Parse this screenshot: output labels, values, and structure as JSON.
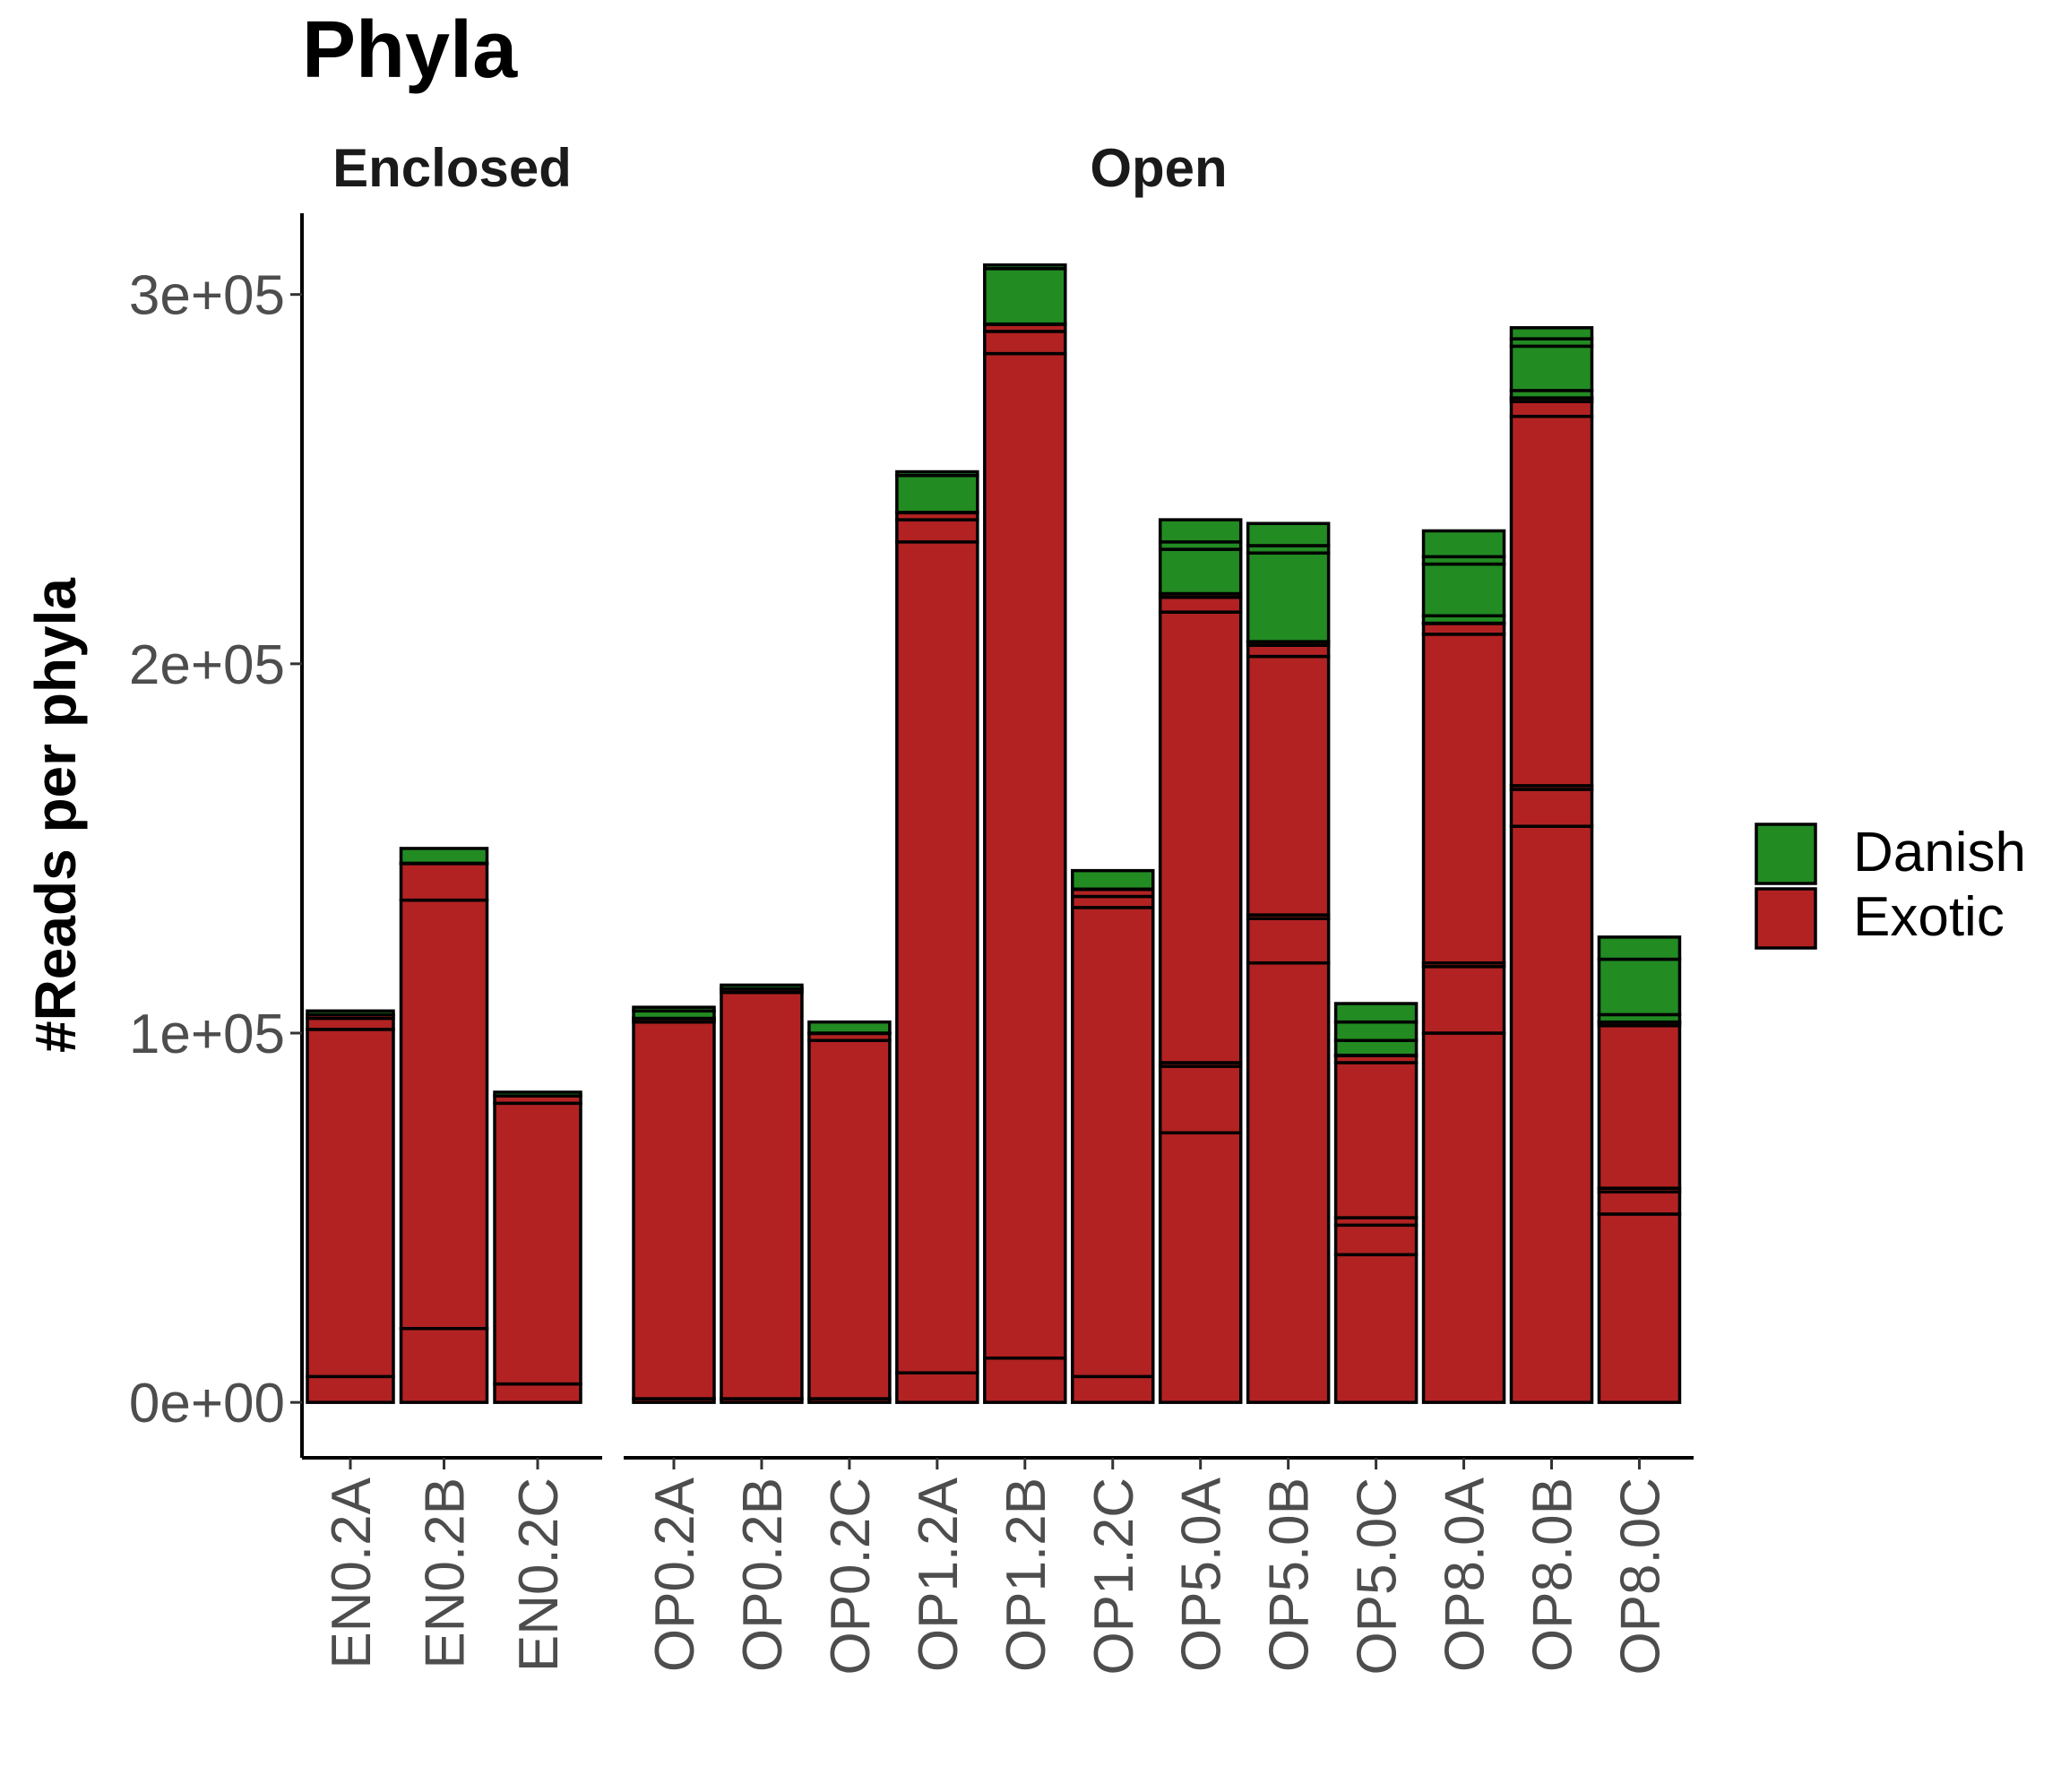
{
  "chart_data": {
    "type": "bar",
    "stacked": true,
    "title": "Phyla",
    "xlabel": "",
    "ylabel": "#Reads per phyla",
    "ylim": [
      -15000,
      322000
    ],
    "yticks": [
      0,
      100000,
      200000,
      300000
    ],
    "ytick_labels": [
      "0e+00",
      "1e+05",
      "2e+05",
      "3e+05"
    ],
    "grid": false,
    "legend": {
      "position": "right",
      "entries": [
        {
          "name": "Danish",
          "color": "#228B22"
        },
        {
          "name": "Exotic",
          "color": "#B22222"
        }
      ]
    },
    "panels": [
      {
        "name": "Enclosed",
        "categories": [
          "EN0.2A",
          "EN0.2B",
          "EN0.2C"
        ],
        "series": [
          {
            "name": "Exotic",
            "segments": [
              [
                0,
                7000,
                101000,
                104000,
                105000
              ],
              [
                0,
                20000,
                136000,
                146000
              ],
              [
                0,
                5000,
                81000,
                83000
              ]
            ]
          },
          {
            "name": "Danish",
            "segments": [
              [
                106000
              ],
              [
                146000,
                150000
              ],
              [
                84000
              ]
            ]
          }
        ]
      },
      {
        "name": "Open",
        "categories": [
          "OP0.2A",
          "OP0.2B",
          "OP0.2C",
          "OP1.2A",
          "OP1.2B",
          "OP1.2C",
          "OP5.0A",
          "OP5.0B",
          "OP5.0C",
          "OP8.0A",
          "OP8.0B",
          "OP8.0C"
        ],
        "series": [
          {
            "name": "Exotic",
            "segments": [
              [
                0,
                1000,
                103000,
                104000
              ],
              [
                0,
                1000,
                111000,
                112000
              ],
              [
                0,
                1000,
                98000,
                100000
              ],
              [
                0,
                8000,
                233000,
                239000,
                241000
              ],
              [
                0,
                12000,
                284000,
                290000,
                292000
              ],
              [
                0,
                7000,
                134000,
                137000,
                139000
              ],
              [
                0,
                73000,
                91000,
                92000,
                214000,
                218000,
                219000
              ],
              [
                0,
                119000,
                131000,
                132000,
                202000,
                205000,
                206000
              ],
              [
                0,
                40000,
                48000,
                50000,
                92000,
                94000
              ],
              [
                0,
                100000,
                118000,
                119000,
                208000,
                211000
              ],
              [
                0,
                156000,
                166000,
                167000,
                267000,
                271000,
                272000
              ],
              [
                0,
                51000,
                57000,
                58000,
                102000,
                103000
              ]
            ]
          },
          {
            "name": "Danish",
            "segments": [
              [
                104000,
                106000,
                107000
              ],
              [
                112000,
                113000
              ],
              [
                100000,
                103000
              ],
              [
                241000,
                251000,
                252000
              ],
              [
                292000,
                307000,
                308000
              ],
              [
                139000,
                144000
              ],
              [
                219000,
                231000,
                233000,
                239000
              ],
              [
                206000,
                230000,
                232000,
                238000
              ],
              [
                94000,
                98000,
                103000,
                108000
              ],
              [
                211000,
                213000,
                227000,
                229000,
                236000
              ],
              [
                272000,
                274000,
                286000,
                288000,
                291000
              ],
              [
                103000,
                105000,
                120000,
                126000
              ]
            ]
          }
        ]
      }
    ]
  }
}
